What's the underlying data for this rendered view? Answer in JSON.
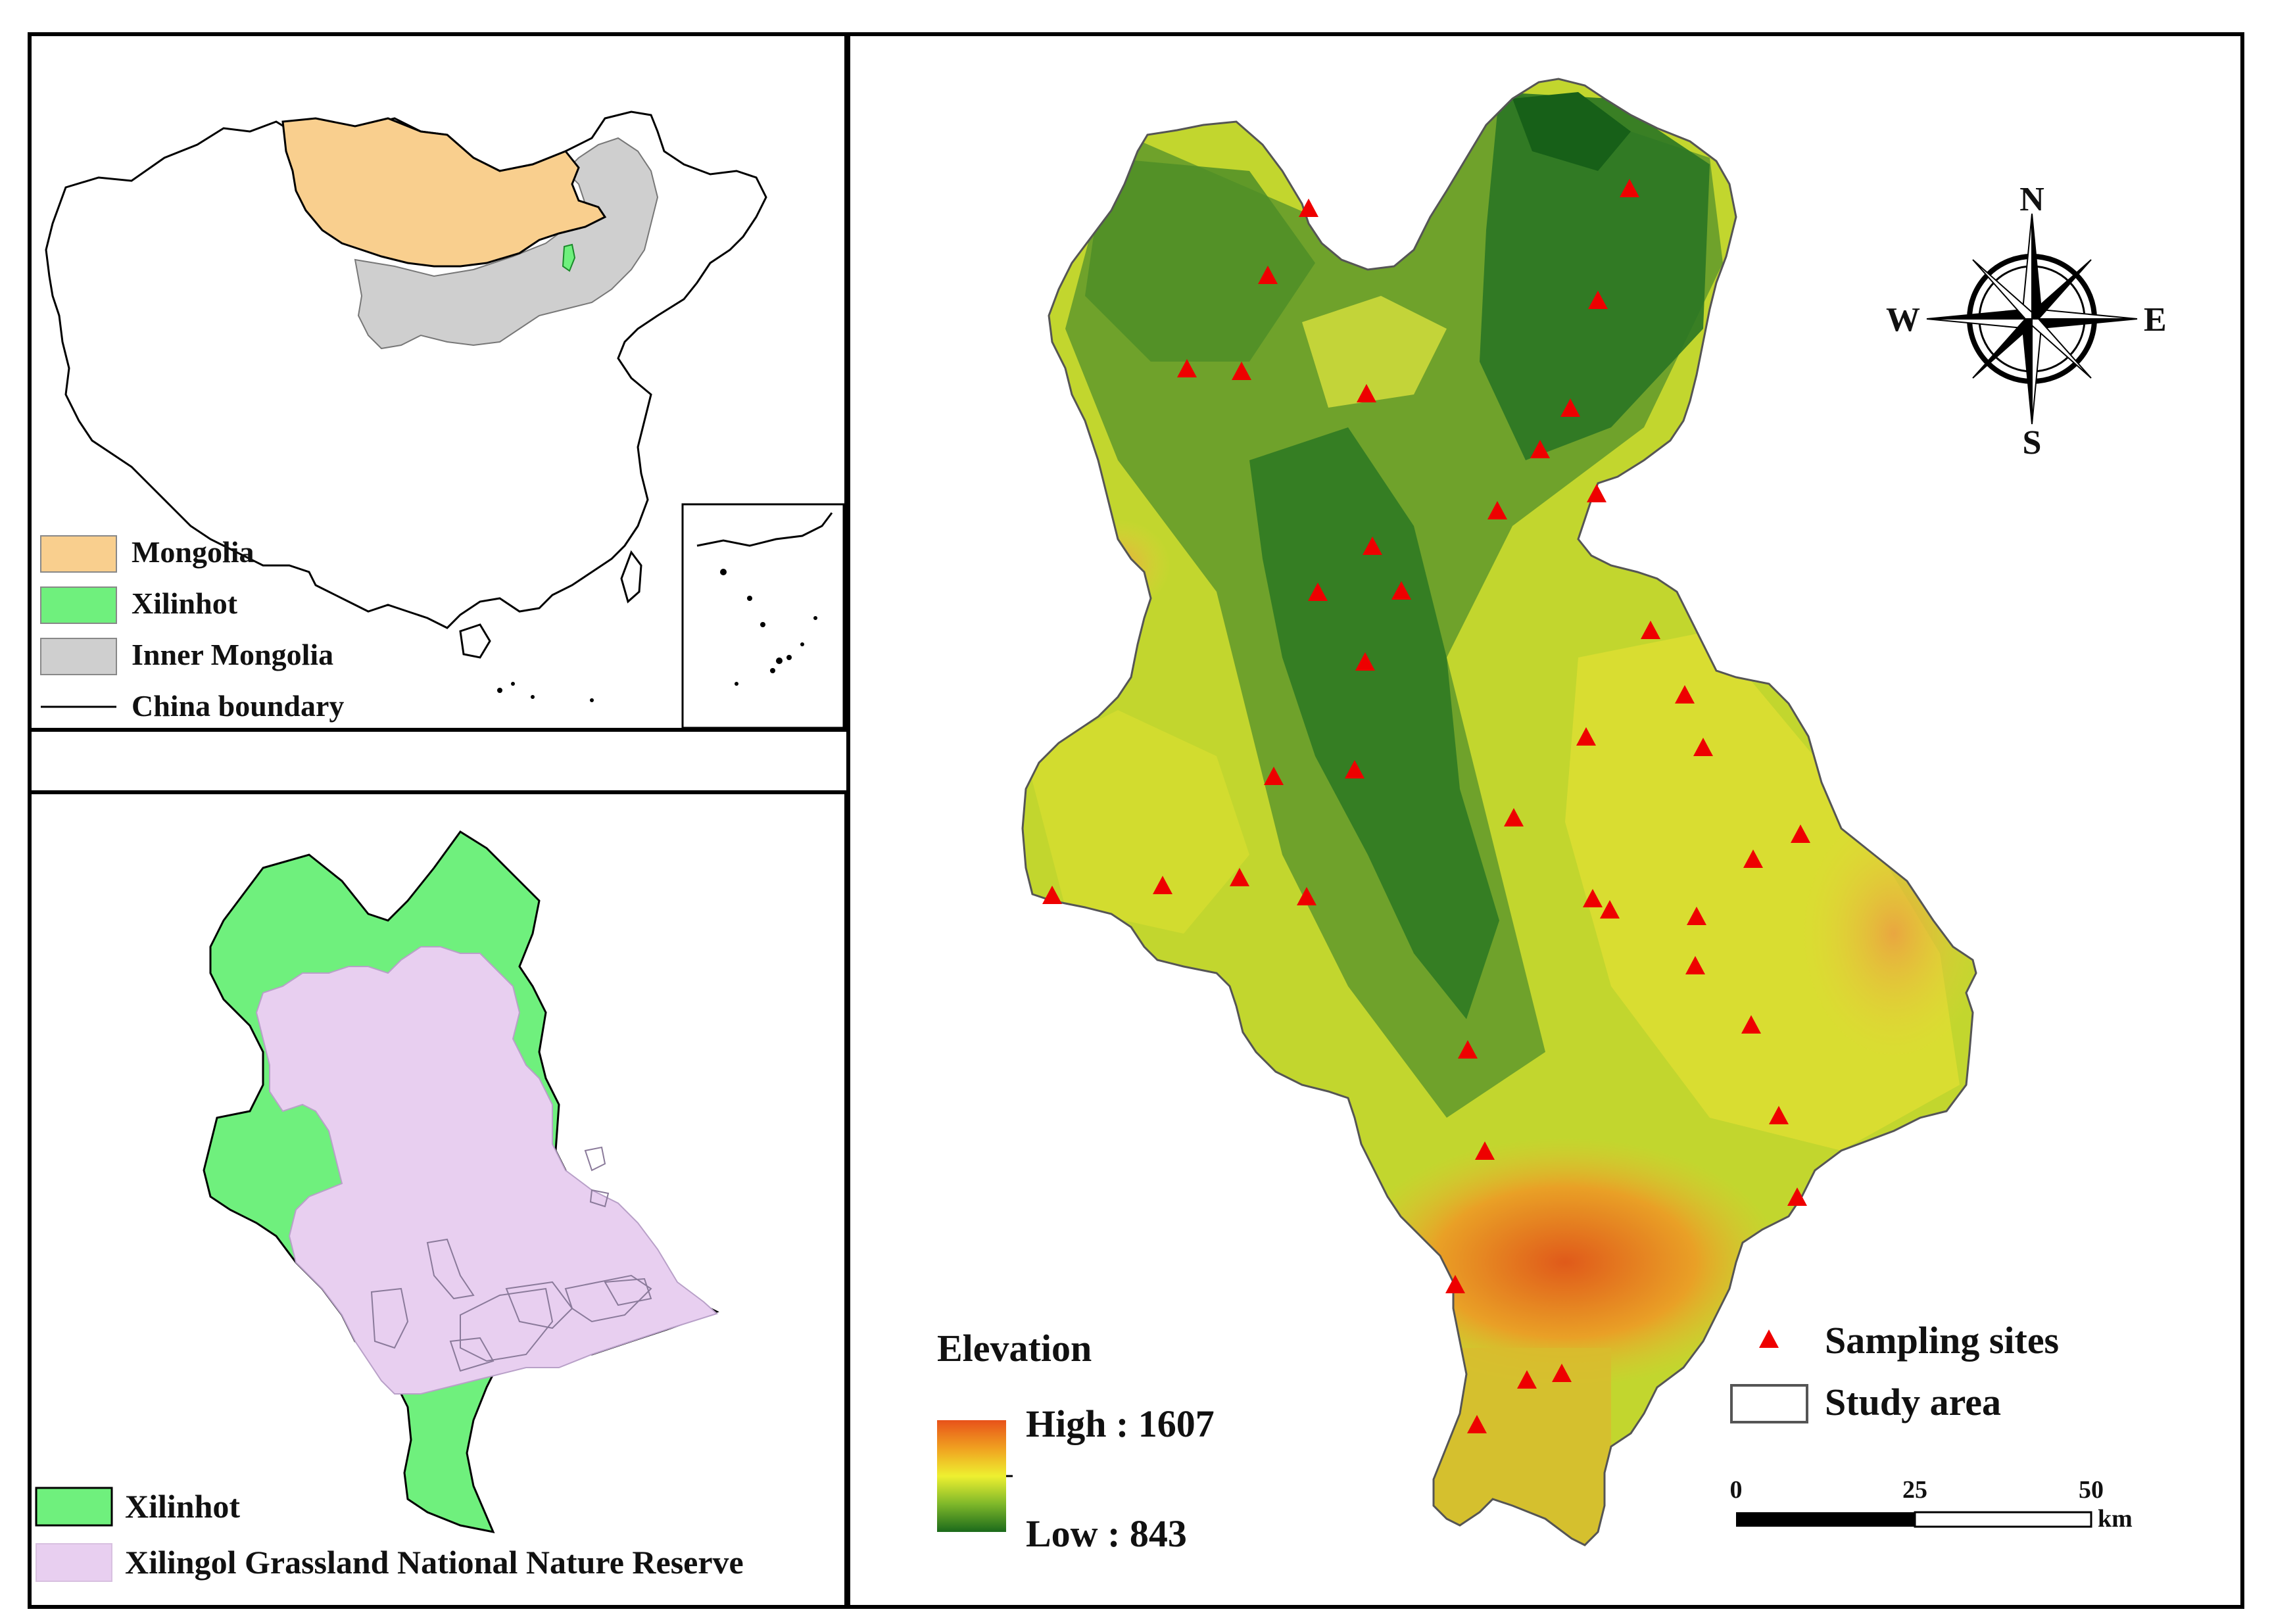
{
  "overview_map": {
    "legend": [
      {
        "label": "Mongolia",
        "color": "#f9cf8e"
      },
      {
        "label": "Xilinhot",
        "color": "#6ff07d"
      },
      {
        "label": "Inner Mongolia",
        "color": "#cfcfcf"
      },
      {
        "label": "China boundary",
        "color": "#000000"
      }
    ]
  },
  "reserve_map": {
    "legend": [
      {
        "label": "Xilinhot",
        "color": "#6ff07d"
      },
      {
        "label": "Xilingol Grassland National Nature Reserve",
        "color": "#e8cff0"
      }
    ]
  },
  "elevation_map": {
    "compass": {
      "n": "N",
      "s": "S",
      "e": "E",
      "w": "W"
    },
    "elevation_legend": {
      "title": "Elevation",
      "high": "High : 1607",
      "low": "Low : 843"
    },
    "legend": {
      "sampling_sites": "Sampling sites",
      "study_area": "Study area"
    },
    "scale_bar": {
      "ticks": [
        "0",
        "25",
        "50"
      ],
      "unit": "km"
    },
    "colors": {
      "low": "#1f6e1d",
      "mid": "#e6e62a",
      "high": "#e8521a",
      "site": "#ee0000"
    }
  }
}
